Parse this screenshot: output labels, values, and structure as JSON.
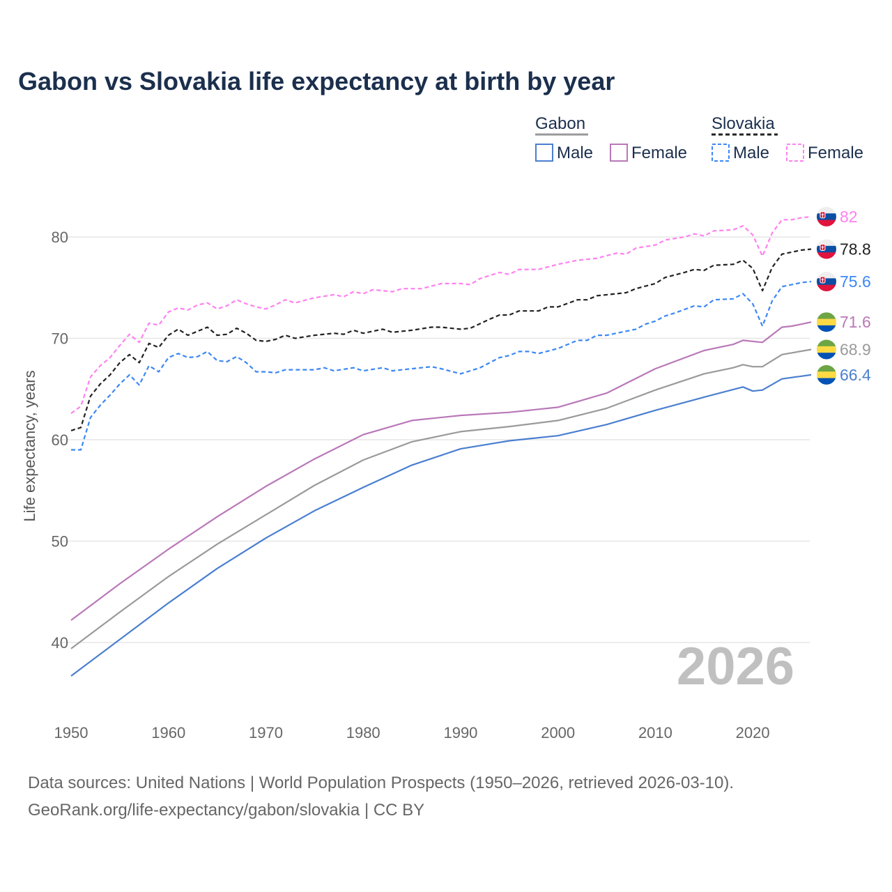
{
  "chart_data": {
    "type": "line",
    "title": "Gabon vs Slovakia life expectancy at birth by year",
    "xlabel": "",
    "ylabel": "Life expectancy, years",
    "xlim": [
      1950,
      2026
    ],
    "ylim": [
      33,
      85
    ],
    "x_ticks": [
      "1950",
      "1960",
      "1970",
      "1980",
      "1990",
      "2000",
      "2010",
      "2020"
    ],
    "y_ticks": [
      "40",
      "50",
      "60",
      "70",
      "80"
    ],
    "grid": true,
    "year_watermark": "2026",
    "legend": {
      "groups": [
        {
          "label": "Gabon",
          "items": [
            "Male",
            "Female"
          ]
        },
        {
          "label": "Slovakia",
          "items": [
            "Male",
            "Female"
          ]
        }
      ],
      "placement": "top-right"
    },
    "series": [
      {
        "name": "Slovakia Female",
        "country": "Slovakia",
        "sex": "Female",
        "color": "#ff80f0",
        "dashed": true,
        "end_label": "82",
        "points": [
          [
            1950,
            62.6
          ],
          [
            1951,
            63.3
          ],
          [
            1952,
            66.2
          ],
          [
            1953,
            67.3
          ],
          [
            1954,
            68.1
          ],
          [
            1955,
            69.3
          ],
          [
            1956,
            70.4
          ],
          [
            1957,
            69.6
          ],
          [
            1958,
            71.5
          ],
          [
            1959,
            71.3
          ],
          [
            1960,
            72.6
          ],
          [
            1961,
            73.0
          ],
          [
            1962,
            72.8
          ],
          [
            1963,
            73.3
          ],
          [
            1964,
            73.5
          ],
          [
            1965,
            72.9
          ],
          [
            1966,
            73.2
          ],
          [
            1967,
            73.8
          ],
          [
            1968,
            73.4
          ],
          [
            1969,
            73.1
          ],
          [
            1970,
            72.9
          ],
          [
            1971,
            73.3
          ],
          [
            1972,
            73.8
          ],
          [
            1973,
            73.5
          ],
          [
            1975,
            74.0
          ],
          [
            1977,
            74.3
          ],
          [
            1978,
            74.1
          ],
          [
            1979,
            74.6
          ],
          [
            1980,
            74.4
          ],
          [
            1981,
            74.8
          ],
          [
            1983,
            74.6
          ],
          [
            1984,
            74.9
          ],
          [
            1986,
            74.9
          ],
          [
            1988,
            75.4
          ],
          [
            1990,
            75.4
          ],
          [
            1991,
            75.3
          ],
          [
            1992,
            75.9
          ],
          [
            1994,
            76.5
          ],
          [
            1995,
            76.3
          ],
          [
            1996,
            76.8
          ],
          [
            1998,
            76.8
          ],
          [
            2000,
            77.3
          ],
          [
            2002,
            77.7
          ],
          [
            2004,
            77.9
          ],
          [
            2006,
            78.4
          ],
          [
            2007,
            78.3
          ],
          [
            2008,
            78.9
          ],
          [
            2010,
            79.2
          ],
          [
            2011,
            79.7
          ],
          [
            2013,
            80.0
          ],
          [
            2014,
            80.3
          ],
          [
            2015,
            80.1
          ],
          [
            2016,
            80.6
          ],
          [
            2018,
            80.7
          ],
          [
            2019,
            81.1
          ],
          [
            2020,
            80.2
          ],
          [
            2021,
            78.1
          ],
          [
            2022,
            80.4
          ],
          [
            2023,
            81.7
          ],
          [
            2024,
            81.7
          ],
          [
            2025,
            81.9
          ],
          [
            2026,
            82.0
          ]
        ]
      },
      {
        "name": "Slovakia Total",
        "country": "Slovakia",
        "sex": "Total",
        "color": "#222222",
        "dashed": true,
        "end_label": "78.8",
        "points": [
          [
            1950,
            60.9
          ],
          [
            1951,
            61.2
          ],
          [
            1952,
            64.3
          ],
          [
            1953,
            65.5
          ],
          [
            1954,
            66.4
          ],
          [
            1955,
            67.6
          ],
          [
            1956,
            68.4
          ],
          [
            1957,
            67.6
          ],
          [
            1958,
            69.5
          ],
          [
            1959,
            69.1
          ],
          [
            1960,
            70.3
          ],
          [
            1961,
            70.9
          ],
          [
            1962,
            70.3
          ],
          [
            1963,
            70.7
          ],
          [
            1964,
            71.1
          ],
          [
            1965,
            70.3
          ],
          [
            1966,
            70.4
          ],
          [
            1967,
            71.0
          ],
          [
            1968,
            70.5
          ],
          [
            1969,
            69.8
          ],
          [
            1970,
            69.7
          ],
          [
            1971,
            69.9
          ],
          [
            1972,
            70.3
          ],
          [
            1973,
            70.0
          ],
          [
            1975,
            70.3
          ],
          [
            1977,
            70.5
          ],
          [
            1978,
            70.4
          ],
          [
            1979,
            70.8
          ],
          [
            1980,
            70.5
          ],
          [
            1982,
            70.9
          ],
          [
            1983,
            70.6
          ],
          [
            1985,
            70.8
          ],
          [
            1987,
            71.1
          ],
          [
            1988,
            71.1
          ],
          [
            1990,
            70.9
          ],
          [
            1991,
            71.0
          ],
          [
            1993,
            71.9
          ],
          [
            1994,
            72.3
          ],
          [
            1995,
            72.3
          ],
          [
            1996,
            72.7
          ],
          [
            1998,
            72.7
          ],
          [
            1999,
            73.1
          ],
          [
            2000,
            73.1
          ],
          [
            2002,
            73.8
          ],
          [
            2003,
            73.8
          ],
          [
            2004,
            74.2
          ],
          [
            2006,
            74.4
          ],
          [
            2007,
            74.5
          ],
          [
            2008,
            74.9
          ],
          [
            2010,
            75.4
          ],
          [
            2011,
            76.0
          ],
          [
            2013,
            76.5
          ],
          [
            2014,
            76.8
          ],
          [
            2015,
            76.7
          ],
          [
            2016,
            77.2
          ],
          [
            2018,
            77.3
          ],
          [
            2019,
            77.7
          ],
          [
            2020,
            76.9
          ],
          [
            2021,
            74.7
          ],
          [
            2022,
            77.0
          ],
          [
            2023,
            78.3
          ],
          [
            2024,
            78.5
          ],
          [
            2025,
            78.7
          ],
          [
            2026,
            78.8
          ]
        ]
      },
      {
        "name": "Slovakia Male",
        "country": "Slovakia",
        "sex": "Male",
        "color": "#3b87f5",
        "dashed": true,
        "end_label": "75.6",
        "points": [
          [
            1950,
            59.0
          ],
          [
            1951,
            59.0
          ],
          [
            1952,
            62.2
          ],
          [
            1953,
            63.4
          ],
          [
            1954,
            64.4
          ],
          [
            1955,
            65.5
          ],
          [
            1956,
            66.4
          ],
          [
            1957,
            65.4
          ],
          [
            1958,
            67.3
          ],
          [
            1959,
            66.7
          ],
          [
            1960,
            68.1
          ],
          [
            1961,
            68.5
          ],
          [
            1962,
            68.1
          ],
          [
            1963,
            68.2
          ],
          [
            1964,
            68.7
          ],
          [
            1965,
            67.8
          ],
          [
            1966,
            67.7
          ],
          [
            1967,
            68.2
          ],
          [
            1968,
            67.6
          ],
          [
            1969,
            66.7
          ],
          [
            1970,
            66.7
          ],
          [
            1971,
            66.6
          ],
          [
            1972,
            66.9
          ],
          [
            1974,
            66.9
          ],
          [
            1975,
            66.9
          ],
          [
            1976,
            67.1
          ],
          [
            1977,
            66.8
          ],
          [
            1979,
            67.1
          ],
          [
            1980,
            66.8
          ],
          [
            1982,
            67.1
          ],
          [
            1983,
            66.8
          ],
          [
            1985,
            67.0
          ],
          [
            1987,
            67.2
          ],
          [
            1988,
            67.0
          ],
          [
            1990,
            66.5
          ],
          [
            1992,
            67.1
          ],
          [
            1994,
            68.1
          ],
          [
            1995,
            68.3
          ],
          [
            1996,
            68.7
          ],
          [
            1997,
            68.7
          ],
          [
            1998,
            68.5
          ],
          [
            2000,
            69.0
          ],
          [
            2002,
            69.8
          ],
          [
            2003,
            69.8
          ],
          [
            2004,
            70.3
          ],
          [
            2005,
            70.3
          ],
          [
            2006,
            70.5
          ],
          [
            2008,
            70.9
          ],
          [
            2009,
            71.4
          ],
          [
            2010,
            71.7
          ],
          [
            2011,
            72.2
          ],
          [
            2012,
            72.5
          ],
          [
            2014,
            73.2
          ],
          [
            2015,
            73.1
          ],
          [
            2016,
            73.8
          ],
          [
            2018,
            73.9
          ],
          [
            2019,
            74.4
          ],
          [
            2020,
            73.4
          ],
          [
            2021,
            71.2
          ],
          [
            2022,
            73.7
          ],
          [
            2023,
            75.1
          ],
          [
            2024,
            75.3
          ],
          [
            2025,
            75.5
          ],
          [
            2026,
            75.6
          ]
        ]
      },
      {
        "name": "Gabon Female",
        "country": "Gabon",
        "sex": "Female",
        "color": "#b978b8",
        "dashed": false,
        "end_label": "71.6",
        "points": [
          [
            1950,
            42.2
          ],
          [
            1955,
            45.8
          ],
          [
            1960,
            49.2
          ],
          [
            1965,
            52.4
          ],
          [
            1970,
            55.4
          ],
          [
            1975,
            58.1
          ],
          [
            1980,
            60.5
          ],
          [
            1985,
            61.9
          ],
          [
            1990,
            62.4
          ],
          [
            1995,
            62.7
          ],
          [
            2000,
            63.2
          ],
          [
            2005,
            64.6
          ],
          [
            2010,
            67.0
          ],
          [
            2015,
            68.8
          ],
          [
            2018,
            69.4
          ],
          [
            2019,
            69.8
          ],
          [
            2021,
            69.6
          ],
          [
            2023,
            71.1
          ],
          [
            2024,
            71.2
          ],
          [
            2026,
            71.6
          ]
        ]
      },
      {
        "name": "Gabon Total",
        "country": "Gabon",
        "sex": "Total",
        "color": "#9a9a9a",
        "dashed": false,
        "end_label": "68.9",
        "points": [
          [
            1950,
            39.4
          ],
          [
            1955,
            43.0
          ],
          [
            1960,
            46.5
          ],
          [
            1965,
            49.7
          ],
          [
            1970,
            52.6
          ],
          [
            1975,
            55.5
          ],
          [
            1980,
            58.0
          ],
          [
            1985,
            59.8
          ],
          [
            1990,
            60.8
          ],
          [
            1995,
            61.3
          ],
          [
            2000,
            61.9
          ],
          [
            2005,
            63.1
          ],
          [
            2010,
            64.9
          ],
          [
            2015,
            66.5
          ],
          [
            2018,
            67.1
          ],
          [
            2019,
            67.4
          ],
          [
            2020,
            67.2
          ],
          [
            2021,
            67.2
          ],
          [
            2023,
            68.4
          ],
          [
            2026,
            68.9
          ]
        ]
      },
      {
        "name": "Gabon Male",
        "country": "Gabon",
        "sex": "Male",
        "color": "#4a7fd0",
        "dashed": false,
        "end_label": "66.4",
        "points": [
          [
            1950,
            36.7
          ],
          [
            1955,
            40.3
          ],
          [
            1960,
            43.9
          ],
          [
            1965,
            47.3
          ],
          [
            1970,
            50.3
          ],
          [
            1975,
            53.0
          ],
          [
            1980,
            55.3
          ],
          [
            1985,
            57.5
          ],
          [
            1990,
            59.1
          ],
          [
            1995,
            59.9
          ],
          [
            2000,
            60.4
          ],
          [
            2005,
            61.5
          ],
          [
            2010,
            62.9
          ],
          [
            2015,
            64.2
          ],
          [
            2019,
            65.2
          ],
          [
            2020,
            64.8
          ],
          [
            2021,
            64.9
          ],
          [
            2023,
            66.0
          ],
          [
            2026,
            66.4
          ]
        ]
      }
    ]
  },
  "footer": {
    "line1": "Data sources: United Nations | World Population Prospects (1950–2026, retrieved 2026-03-10).",
    "line2": "GeoRank.org/life-expectancy/gabon/slovakia | CC BY"
  }
}
